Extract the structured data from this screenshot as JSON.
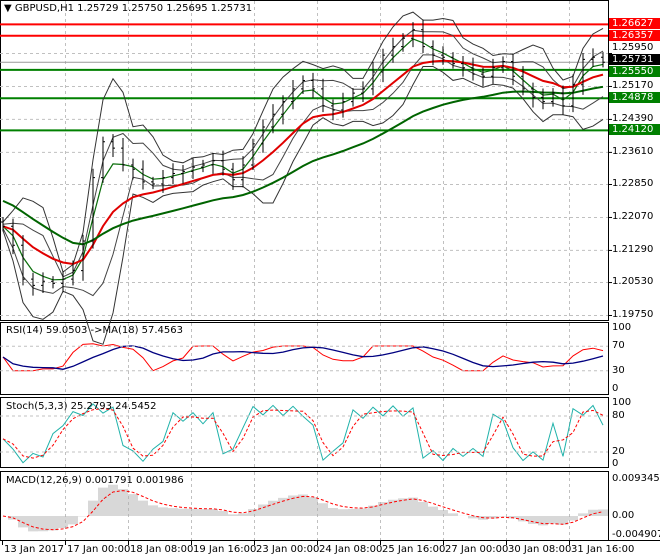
{
  "header": {
    "symbol": "GBPUSD,H1",
    "open": "1.25729",
    "high": "1.25750",
    "low": "1.25695",
    "close": "1.25731"
  },
  "price_axis": [
    "1.25950",
    "1.25170",
    "1.24390",
    "1.23610",
    "1.22850",
    "1.22070",
    "1.21290",
    "1.20530",
    "1.19750"
  ],
  "levels": [
    {
      "value": "1.26627",
      "color": "#ff0000"
    },
    {
      "value": "1.26357",
      "color": "#ff0000"
    },
    {
      "value": "1.25550",
      "color": "#008000"
    },
    {
      "value": "1.24878",
      "color": "#008000"
    },
    {
      "value": "1.24120",
      "color": "#008000"
    }
  ],
  "current_price": "1.25731",
  "rsi": {
    "label": "RSI(14) 59.0503  ->MA(18) 57.4563",
    "axis": [
      "100",
      "70",
      "30",
      "0"
    ]
  },
  "stoch": {
    "label": "Stoch(5,3,3) 25.2793 24.5452",
    "axis": [
      "100",
      "80",
      "20",
      "0"
    ]
  },
  "macd": {
    "label": "MACD(12,26,9) 0.001791 0.001986",
    "axis": [
      "0.009345",
      "0.00",
      "-0.004907"
    ]
  },
  "time_axis": [
    "13 Jan 2017",
    "17 Jan 00:00",
    "18 Jan 08:00",
    "19 Jan 16:00",
    "23 Jan 00:00",
    "24 Jan 08:00",
    "25 Jan 16:00",
    "27 Jan 00:00",
    "30 Jan 08:00",
    "31 Jan 16:00"
  ],
  "chart_data": {
    "type": "line",
    "title": "GBPUSD,H1",
    "ylim": [
      1.1975,
      1.2663
    ],
    "closes": [
      1.2185,
      1.214,
      1.206,
      1.2045,
      1.2055,
      1.205,
      1.206,
      1.208,
      1.215,
      1.23,
      1.2385,
      1.237,
      1.233,
      1.232,
      1.229,
      1.2285,
      1.23,
      1.231,
      1.2315,
      1.2325,
      1.233,
      1.234,
      1.232,
      1.2295,
      1.233,
      1.238,
      1.242,
      1.245,
      1.248,
      1.251,
      1.253,
      1.251,
      1.247,
      1.246,
      1.248,
      1.25,
      1.251,
      1.255,
      1.259,
      1.261,
      1.263,
      1.265,
      1.261,
      1.259,
      1.2585,
      1.257,
      1.256,
      1.2545,
      1.254,
      1.256,
      1.2575,
      1.254,
      1.251,
      1.249,
      1.248,
      1.25,
      1.247,
      1.252,
      1.258,
      1.2585,
      1.2573
    ]
  }
}
